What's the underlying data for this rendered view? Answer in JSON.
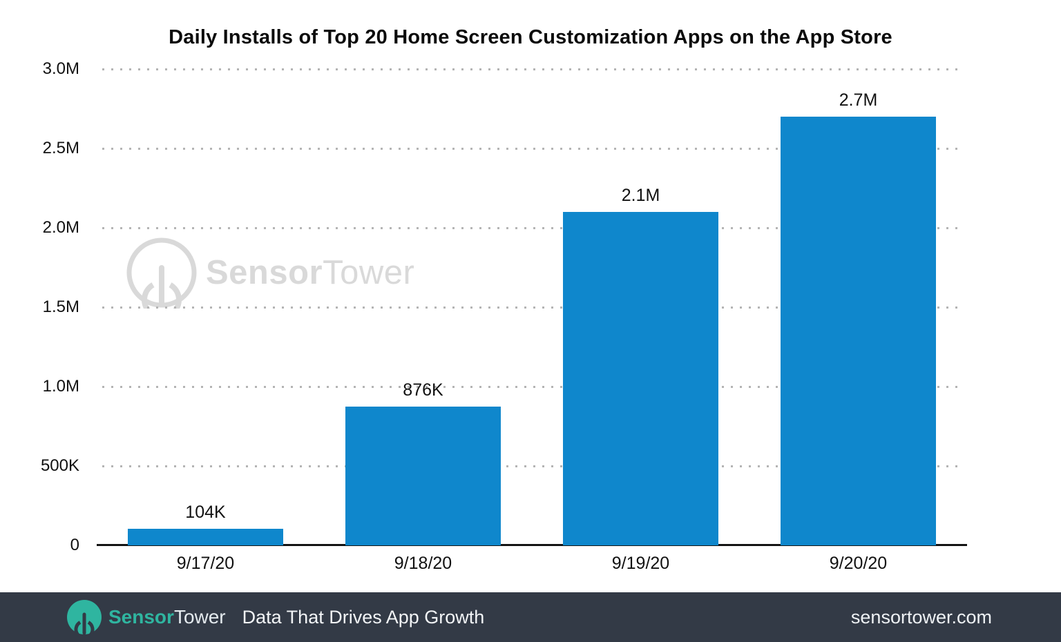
{
  "chart": {
    "title": "Daily Installs of Top 20 Home Screen Customization Apps on the App Store"
  },
  "chart_data": {
    "type": "bar",
    "title": "Daily Installs of Top 20 Home Screen Customization Apps on the App Store",
    "categories": [
      "9/17/20",
      "9/18/20",
      "9/19/20",
      "9/20/20"
    ],
    "series": [
      {
        "name": "Daily Installs",
        "values": [
          104000,
          876000,
          2100000,
          2700000
        ],
        "value_labels": [
          "104K",
          "876K",
          "2.1M",
          "2.7M"
        ]
      }
    ],
    "xlabel": "",
    "ylabel": "",
    "ylim": [
      0,
      3000000
    ],
    "yticks": [
      {
        "label": "3.0M",
        "value": 3000000
      },
      {
        "label": "2.5M",
        "value": 2500000
      },
      {
        "label": "2.0M",
        "value": 2000000
      },
      {
        "label": "1.5M",
        "value": 1500000
      },
      {
        "label": "1.0M",
        "value": 1000000
      },
      {
        "label": "500K",
        "value": 500000
      },
      {
        "label": "0",
        "value": 0
      }
    ],
    "grid": "horizontal-dotted",
    "legend": false,
    "bar_color": "#0f87cc",
    "grid_color": "#b4b4b4",
    "axis_color": "#141414"
  },
  "watermark": {
    "brand_bold": "Sensor",
    "brand_light": "Tower",
    "color": "#d9d9d9"
  },
  "footer": {
    "brand_bold": "Sensor",
    "brand_light": "Tower",
    "tagline": "Data That Drives App Growth",
    "website": "sensortower.com",
    "background": "#333a46",
    "accent": "#2fb5a0"
  }
}
